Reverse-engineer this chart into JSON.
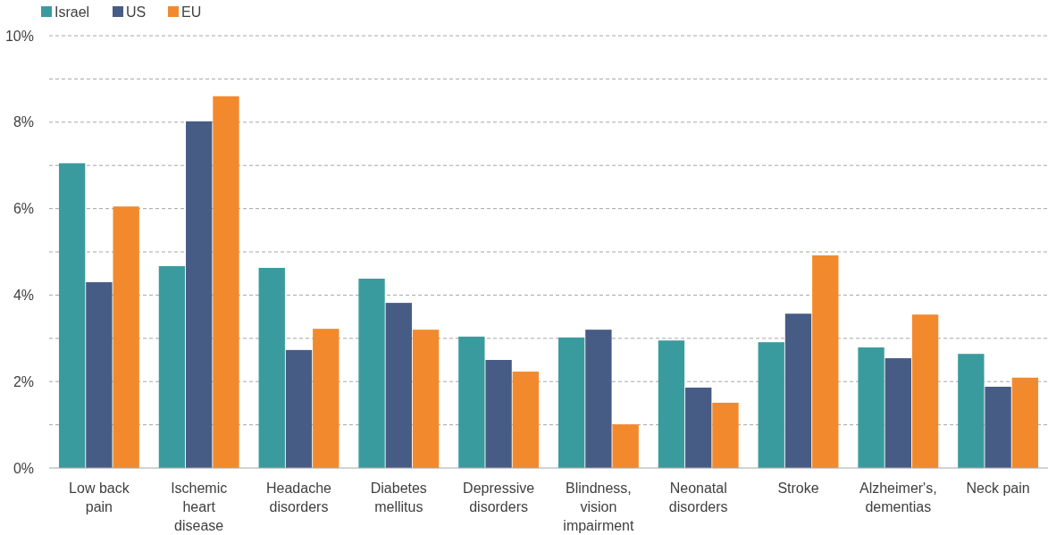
{
  "chart_data": {
    "type": "bar",
    "categories": [
      "Low back pain",
      "Ischemic heart disease",
      "Headache disorders",
      "Diabetes mellitus",
      "Depressive disorders",
      "Blindness, vision impairment",
      "Neonatal disorders",
      "Stroke",
      "Alzheimer's, dementias",
      "Neck pain"
    ],
    "series": [
      {
        "name": "Israel",
        "color": "#3a9b9f",
        "values": [
          7.05,
          4.67,
          4.63,
          4.38,
          3.04,
          3.02,
          2.95,
          2.91,
          2.79,
          2.64
        ]
      },
      {
        "name": "US",
        "color": "#475c85",
        "values": [
          4.3,
          8.02,
          2.73,
          3.82,
          2.5,
          3.2,
          1.86,
          3.57,
          2.54,
          1.88
        ]
      },
      {
        "name": "EU",
        "color": "#f28a2d",
        "values": [
          6.05,
          8.6,
          3.22,
          3.2,
          2.23,
          1.01,
          1.51,
          4.92,
          3.55,
          2.09
        ]
      }
    ],
    "ylim": [
      0,
      10
    ],
    "yticks": [
      {
        "value": 0,
        "label": "0%"
      },
      {
        "value": 1,
        "label": null
      },
      {
        "value": 2,
        "label": "2%"
      },
      {
        "value": 3,
        "label": null
      },
      {
        "value": 4,
        "label": "4%"
      },
      {
        "value": 5,
        "label": null
      },
      {
        "value": 6,
        "label": "6%"
      },
      {
        "value": 7,
        "label": null
      },
      {
        "value": 8,
        "label": "8%"
      },
      {
        "value": 9,
        "label": null
      },
      {
        "value": 10,
        "label": "10%"
      }
    ],
    "grid": "y",
    "legend": "top left"
  }
}
